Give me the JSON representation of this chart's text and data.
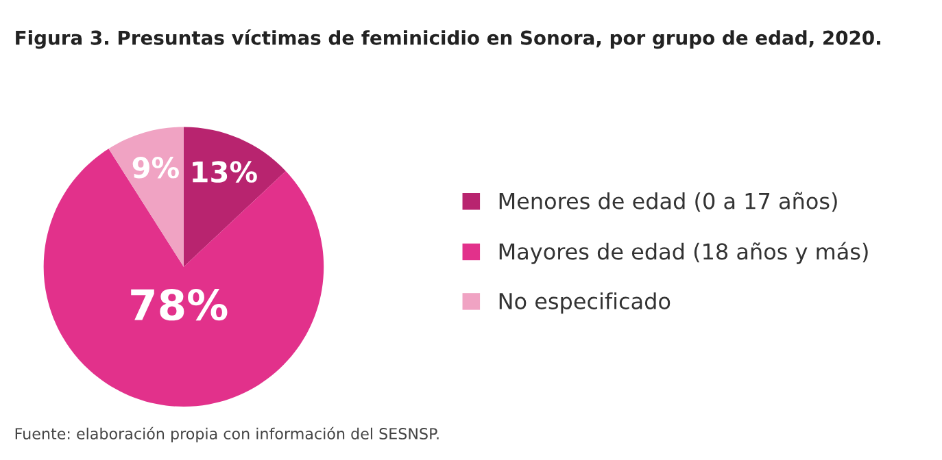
{
  "chart_data": {
    "type": "pie",
    "title": "Figura 3. Presuntas víctimas de feminicidio en Sonora, por grupo de edad, 2020.",
    "categories": [
      "Menores de edad (0 a 17 años)",
      "Mayores de edad (18 años y más)",
      "No especificado"
    ],
    "values": [
      13,
      78,
      9
    ],
    "colors": [
      "#b8246f",
      "#e2318b",
      "#f0a3c3"
    ],
    "value_labels": [
      "13%",
      "78%",
      "9%"
    ],
    "legend": "right",
    "annotations": [
      "Fuente: elaboración propia con información del SESNSP."
    ]
  }
}
